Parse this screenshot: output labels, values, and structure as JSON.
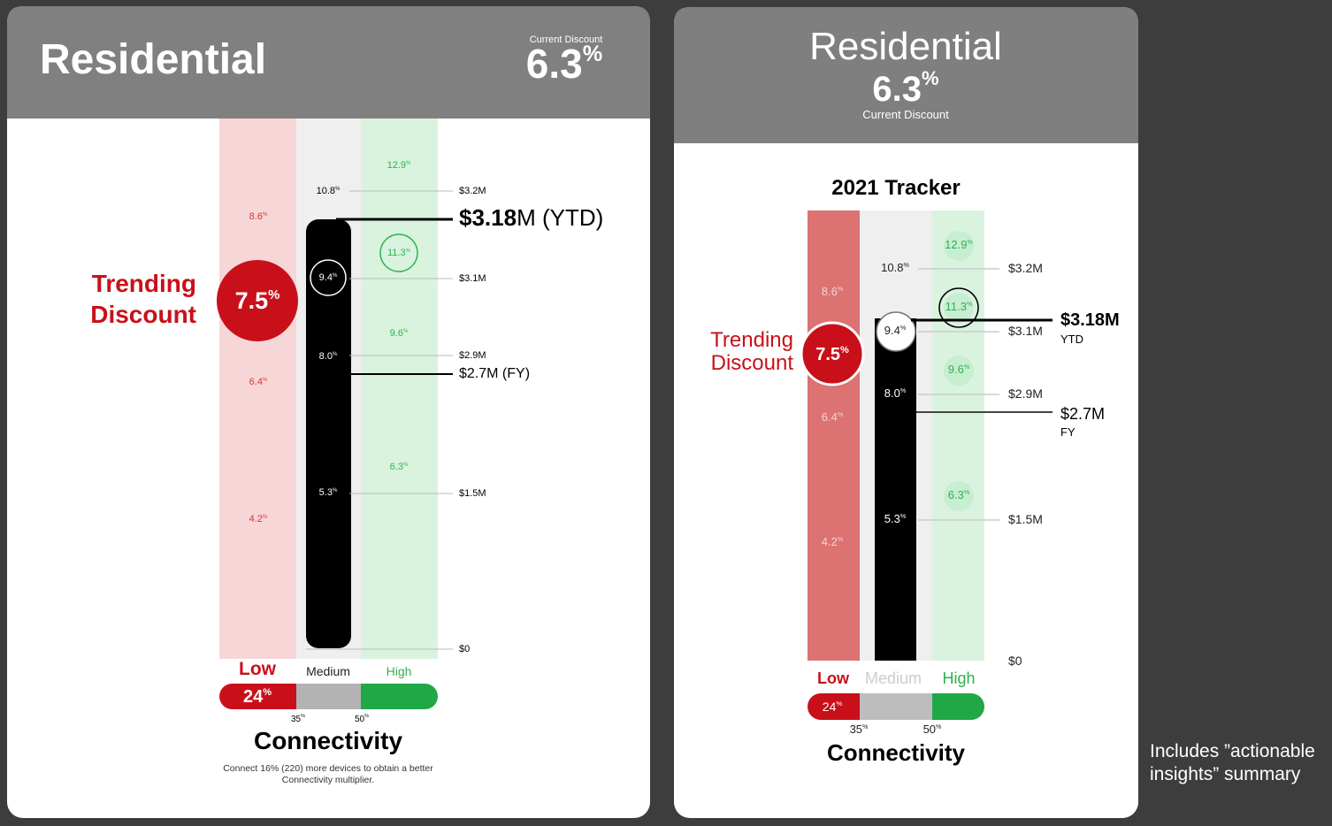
{
  "percent_sign": "%",
  "left_card": {
    "title": "Residential",
    "current_discount_label": "Current Discount",
    "current_discount": "6.3",
    "trending_label": [
      "Trending",
      "Discount"
    ],
    "trending_discount": "7.5",
    "low_values": [
      "8.6",
      "6.4",
      "4.2"
    ],
    "medium_values": [
      "10.8",
      "9.4",
      "8.0",
      "5.3"
    ],
    "high_values": [
      "12.9",
      "11.3",
      "9.6",
      "6.3"
    ],
    "amounts": [
      "$3.2M",
      "$3.1M",
      "$2.9M",
      "$1.5M",
      "$0"
    ],
    "ytd_amount": "$3.18",
    "ytd_rest": "M (YTD)",
    "fy": "$2.7M (FY)",
    "tiers": [
      "Low",
      "Medium",
      "High"
    ],
    "low_share": "24",
    "thresholds": [
      "35",
      "50"
    ],
    "connectivity": "Connectivity",
    "note": [
      "Connect 16% (220) more devices to obtain a better",
      "Connectivity multiplier."
    ]
  },
  "right_card": {
    "title": "Residential",
    "current_discount": "6.3",
    "current_discount_label": "Current Discount",
    "tracker_title": "2021 Tracker",
    "trending_label": [
      "Trending",
      "Discount"
    ],
    "trending_discount": "7.5",
    "low_values": [
      "8.6",
      "6.4",
      "4.2"
    ],
    "medium_values": [
      "10.8",
      "9.4",
      "8.0",
      "5.3"
    ],
    "high_values": [
      "12.9",
      "11.3",
      "9.6",
      "6.3"
    ],
    "amounts": [
      "$3.2M",
      "$3.1M",
      "$2.9M",
      "$1.5M",
      "$0"
    ],
    "ytd": "$3.18M",
    "ytd_label": "YTD",
    "fy": "$2.7M",
    "fy_label": "FY",
    "tiers": [
      "Low",
      "Medium",
      "High"
    ],
    "low_share": "24",
    "thresholds": [
      "35",
      "50"
    ],
    "connectivity": "Connectivity"
  },
  "note": [
    "Includes ”actionable",
    "insights” summary"
  ]
}
